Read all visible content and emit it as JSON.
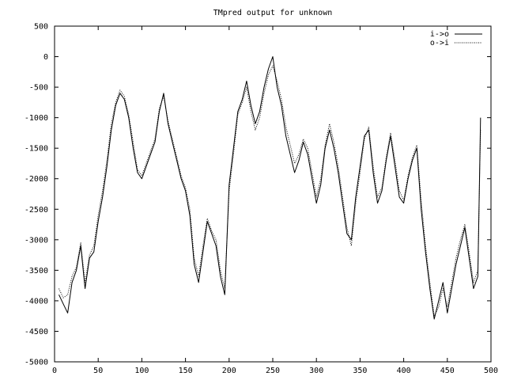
{
  "chart_data": {
    "type": "line",
    "title": "TMpred output for unknown",
    "xlabel": "",
    "ylabel": "",
    "xlim": [
      0,
      500
    ],
    "ylim": [
      -5000,
      500
    ],
    "xticks": [
      0,
      50,
      100,
      150,
      200,
      250,
      300,
      350,
      400,
      450,
      500
    ],
    "yticks": [
      500,
      0,
      -500,
      -1000,
      -1500,
      -2000,
      -2500,
      -3000,
      -3500,
      -4000,
      -4500,
      -5000
    ],
    "grid": false,
    "legend_position": "top-right",
    "series": [
      {
        "name": "i->o",
        "style": "solid",
        "x": [
          5,
          10,
          15,
          20,
          25,
          30,
          35,
          40,
          45,
          50,
          55,
          60,
          65,
          70,
          75,
          80,
          85,
          90,
          95,
          100,
          105,
          110,
          115,
          120,
          125,
          130,
          135,
          140,
          145,
          150,
          155,
          160,
          165,
          170,
          175,
          180,
          185,
          190,
          195,
          200,
          205,
          210,
          215,
          220,
          225,
          230,
          235,
          240,
          245,
          250,
          255,
          260,
          265,
          270,
          275,
          280,
          285,
          290,
          295,
          300,
          305,
          310,
          315,
          320,
          325,
          330,
          335,
          340,
          345,
          350,
          355,
          360,
          365,
          370,
          375,
          380,
          385,
          390,
          395,
          400,
          405,
          410,
          415,
          420,
          425,
          430,
          435,
          440,
          445,
          450,
          455,
          460,
          465,
          470,
          475,
          480,
          485,
          488
        ],
        "y": [
          -3900,
          -4050,
          -4200,
          -3700,
          -3500,
          -3100,
          -3800,
          -3300,
          -3200,
          -2700,
          -2300,
          -1800,
          -1200,
          -800,
          -600,
          -700,
          -1000,
          -1500,
          -1900,
          -2000,
          -1800,
          -1600,
          -1400,
          -900,
          -600,
          -1100,
          -1400,
          -1700,
          -2000,
          -2200,
          -2600,
          -3400,
          -3700,
          -3200,
          -2700,
          -2900,
          -3100,
          -3600,
          -3900,
          -2100,
          -1500,
          -900,
          -700,
          -400,
          -800,
          -1100,
          -900,
          -500,
          -200,
          0,
          -500,
          -800,
          -1300,
          -1600,
          -1900,
          -1700,
          -1400,
          -1600,
          -2000,
          -2400,
          -2100,
          -1500,
          -1200,
          -1500,
          -1900,
          -2400,
          -2900,
          -3000,
          -2300,
          -1800,
          -1300,
          -1200,
          -1900,
          -2400,
          -2200,
          -1700,
          -1300,
          -1800,
          -2300,
          -2400,
          -2000,
          -1700,
          -1500,
          -2500,
          -3200,
          -3800,
          -4300,
          -4000,
          -3700,
          -4200,
          -3800,
          -3400,
          -3100,
          -2800,
          -3300,
          -3800,
          -3600,
          -1000
        ]
      },
      {
        "name": "o->i",
        "style": "dotted",
        "x": [
          5,
          10,
          15,
          20,
          25,
          30,
          35,
          40,
          45,
          50,
          55,
          60,
          65,
          70,
          75,
          80,
          85,
          90,
          95,
          100,
          105,
          110,
          115,
          120,
          125,
          130,
          135,
          140,
          145,
          150,
          155,
          160,
          165,
          170,
          175,
          180,
          185,
          190,
          195,
          200,
          205,
          210,
          215,
          220,
          225,
          230,
          235,
          240,
          245,
          250,
          255,
          260,
          265,
          270,
          275,
          280,
          285,
          290,
          295,
          300,
          305,
          310,
          315,
          320,
          325,
          330,
          335,
          340,
          345,
          350,
          355,
          360,
          365,
          370,
          375,
          380,
          385,
          390,
          395,
          400,
          405,
          410,
          415,
          420,
          425,
          430,
          435,
          440,
          445,
          450,
          455,
          460,
          465,
          470,
          475,
          480,
          485,
          488
        ],
        "y": [
          -3800,
          -3950,
          -3900,
          -3600,
          -3450,
          -3050,
          -3700,
          -3250,
          -3100,
          -2600,
          -2200,
          -1700,
          -1100,
          -750,
          -550,
          -650,
          -950,
          -1400,
          -1850,
          -1950,
          -1750,
          -1550,
          -1350,
          -850,
          -650,
          -1050,
          -1350,
          -1650,
          -1950,
          -2150,
          -2500,
          -3300,
          -3600,
          -3100,
          -2650,
          -2850,
          -3000,
          -3500,
          -3800,
          -2200,
          -1600,
          -950,
          -750,
          -500,
          -900,
          -1200,
          -1000,
          -600,
          -300,
          -150,
          -400,
          -700,
          -1150,
          -1450,
          -1750,
          -1600,
          -1350,
          -1500,
          -1900,
          -2300,
          -2000,
          -1450,
          -1100,
          -1400,
          -1800,
          -2300,
          -2800,
          -3100,
          -2400,
          -1900,
          -1350,
          -1150,
          -1800,
          -2300,
          -2150,
          -1650,
          -1250,
          -1700,
          -2200,
          -2350,
          -1950,
          -1650,
          -1450,
          -2350,
          -3100,
          -3700,
          -4250,
          -4100,
          -3800,
          -4100,
          -3700,
          -3300,
          -3000,
          -2750,
          -3200,
          -3700,
          -3500,
          -1200
        ]
      }
    ]
  }
}
